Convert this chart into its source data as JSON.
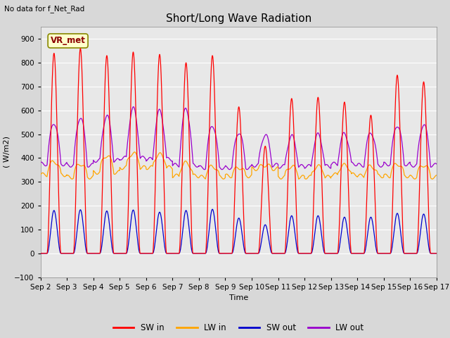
{
  "title": "Short/Long Wave Radiation",
  "xlabel": "Time",
  "ylabel": "( W/m2)",
  "ylim": [
    -100,
    950
  ],
  "xlim": [
    0,
    15
  ],
  "xtick_labels": [
    "Sep 2",
    "Sep 3",
    "Sep 4",
    "Sep 5",
    "Sep 6",
    "Sep 7",
    "Sep 8",
    "Sep 9",
    "Sep 10",
    "Sep 11",
    "Sep 12",
    "Sep 13",
    "Sep 14",
    "Sep 15",
    "Sep 16",
    "Sep 17"
  ],
  "xtick_positions": [
    0,
    1,
    2,
    3,
    4,
    5,
    6,
    7,
    8,
    9,
    10,
    11,
    12,
    13,
    14,
    15
  ],
  "annotation_text": "No data for f_Net_Rad",
  "legend_label": "VR_met",
  "sw_in_color": "#FF0000",
  "lw_in_color": "#FFA500",
  "sw_out_color": "#0000CD",
  "lw_out_color": "#9900CC",
  "figure_bg_color": "#D8D8D8",
  "plot_bg_color": "#E8E8E8",
  "title_fontsize": 11,
  "label_fontsize": 8,
  "tick_fontsize": 7.5,
  "grid_color": "#FFFFFF",
  "num_days": 15,
  "sw_in_peaks": [
    840,
    860,
    830,
    845,
    835,
    800,
    830,
    615,
    450,
    650,
    655,
    635,
    580,
    748,
    720
  ],
  "lw_in_night": [
    330,
    320,
    340,
    360,
    360,
    325,
    320,
    325,
    355,
    320,
    320,
    330,
    325,
    325,
    320
  ],
  "lw_in_day": [
    385,
    375,
    410,
    420,
    415,
    380,
    365,
    360,
    370,
    365,
    365,
    370,
    365,
    375,
    370
  ],
  "sw_out_peaks": [
    180,
    183,
    178,
    182,
    173,
    180,
    185,
    148,
    120,
    158,
    158,
    152,
    152,
    168,
    165
  ],
  "lw_out_night": [
    375,
    370,
    390,
    400,
    395,
    370,
    360,
    360,
    370,
    365,
    365,
    375,
    370,
    375,
    370
  ],
  "lw_out_day": [
    548,
    572,
    578,
    608,
    598,
    608,
    538,
    508,
    498,
    492,
    498,
    503,
    508,
    538,
    542
  ],
  "yticks": [
    -100,
    0,
    100,
    200,
    300,
    400,
    500,
    600,
    700,
    800,
    900
  ]
}
